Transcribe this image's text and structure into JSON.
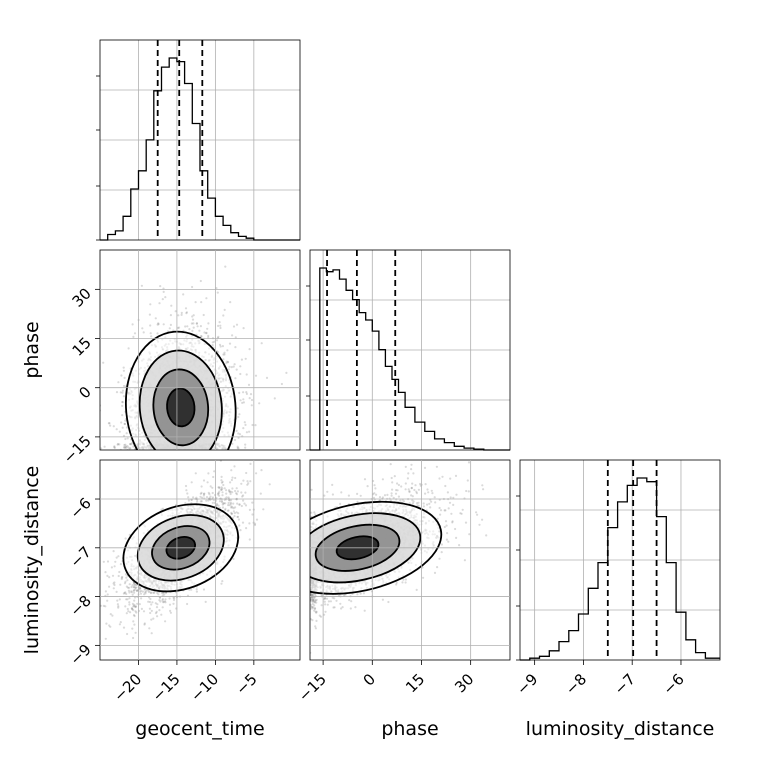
{
  "chart_data": {
    "type": "corner",
    "parameters": [
      "geocent_time",
      "phase",
      "luminosity_distance"
    ],
    "ranges": {
      "geocent_time": [
        -25,
        1
      ],
      "phase": [
        -19,
        42
      ],
      "luminosity_distance": [
        -9.3,
        -5.2
      ]
    },
    "ticks": {
      "geocent_time": [
        -20,
        -15,
        -10,
        -5
      ],
      "phase": [
        -15,
        0,
        15,
        30
      ],
      "luminosity_distance": [
        -9,
        -8,
        -7,
        -6
      ]
    },
    "tick_labels": {
      "geocent_time": [
        "−20",
        "−15",
        "−10",
        "−5"
      ],
      "phase": [
        "−15",
        "0",
        "15",
        "30"
      ],
      "luminosity_distance": [
        "−9",
        "−8",
        "−7",
        "−6"
      ]
    },
    "quantiles": {
      "geocent_time": [
        -17.5,
        -14.7,
        -11.7
      ],
      "phase": [
        -13.8,
        -4.7,
        7.0
      ],
      "luminosity_distance": [
        -7.5,
        -6.98,
        -6.5
      ]
    },
    "histograms": {
      "geocent_time": {
        "edges": [
          -25,
          -24,
          -23,
          -22,
          -21,
          -20,
          -19,
          -18,
          -17,
          -16,
          -15,
          -14,
          -13,
          -12,
          -11,
          -10,
          -9,
          -8,
          -7,
          -6,
          -5,
          -4,
          -3,
          -2,
          -1,
          0,
          1
        ],
        "counts": [
          0,
          0.03,
          0.05,
          0.13,
          0.28,
          0.38,
          0.55,
          0.82,
          0.95,
          1.0,
          0.98,
          0.86,
          0.64,
          0.38,
          0.23,
          0.13,
          0.08,
          0.04,
          0.02,
          0.01,
          0,
          0,
          0,
          0,
          0,
          0
        ]
      },
      "phase": {
        "edges": [
          -19,
          -16,
          -14,
          -12,
          -10,
          -8,
          -6,
          -4,
          -2,
          0,
          2,
          4,
          6,
          8,
          10,
          13,
          16,
          19,
          22,
          25,
          28,
          31,
          34,
          38,
          42
        ],
        "counts": [
          0,
          0.98,
          0.96,
          0.97,
          0.92,
          0.86,
          0.81,
          0.74,
          0.7,
          0.64,
          0.54,
          0.45,
          0.38,
          0.31,
          0.23,
          0.15,
          0.1,
          0.06,
          0.04,
          0.02,
          0.01,
          0.005,
          0,
          0
        ]
      },
      "luminosity_distance": {
        "edges": [
          -9.3,
          -9.1,
          -8.9,
          -8.7,
          -8.5,
          -8.3,
          -8.1,
          -7.9,
          -7.7,
          -7.5,
          -7.3,
          -7.1,
          -6.9,
          -6.7,
          -6.5,
          -6.3,
          -6.1,
          -5.9,
          -5.7,
          -5.5,
          -5.2
        ],
        "counts": [
          0,
          0.01,
          0.02,
          0.05,
          0.1,
          0.16,
          0.25,
          0.39,
          0.53,
          0.72,
          0.86,
          0.95,
          0.99,
          0.97,
          0.78,
          0.53,
          0.26,
          0.11,
          0.04,
          0.01
        ]
      }
    },
    "scatter_panels": [
      {
        "x": "geocent_time",
        "y": "phase",
        "mean": [
          -14.5,
          -6
        ],
        "std": [
          3.5,
          12
        ],
        "corr": 0.1,
        "clip_y_min": -19
      },
      {
        "x": "geocent_time",
        "y": "luminosity_distance",
        "mean": [
          -14.5,
          -7.0
        ],
        "std": [
          3.5,
          0.55
        ],
        "corr": 0.68
      },
      {
        "x": "phase",
        "y": "luminosity_distance",
        "mean": [
          -4.5,
          -7.0
        ],
        "std": [
          12,
          0.55
        ],
        "corr": 0.55,
        "clip_x_min": -19
      }
    ],
    "xlabels": [
      "geocent_time",
      "phase",
      "luminosity_distance"
    ],
    "ylabels": [
      "",
      "phase",
      "luminosity_distance"
    ],
    "grid": true
  }
}
